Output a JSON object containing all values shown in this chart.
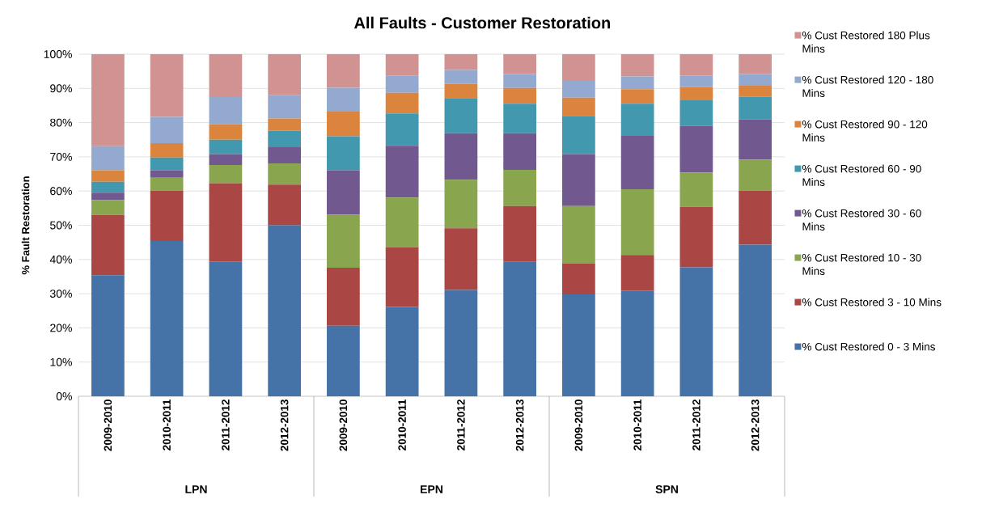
{
  "chart_data": {
    "type": "bar",
    "stacked": true,
    "title": "All Faults - Customer Restoration",
    "ylabel": "% Fault Restoration",
    "categories": [
      "2009-2010",
      "2010-2011",
      "2011-2012",
      "2012-2013",
      "2009-2010",
      "2010-2011",
      "2011-2012",
      "2012-2013",
      "2009-2010",
      "2010-2011",
      "2011-2012",
      "2012-2013"
    ],
    "annotations": [
      "LPN",
      "EPN",
      "SPN"
    ],
    "series": [
      {
        "name": "% Cust Restored 0 - 3 Mins",
        "color": "#4572a7",
        "values": [
          35.4,
          45.4,
          39.4,
          50.0,
          20.6,
          26.1,
          31.1,
          39.3,
          29.8,
          30.9,
          37.7,
          44.3
        ]
      },
      {
        "name": "% Cust Restored 3 - 10 Mins",
        "color": "#aa4643",
        "values": [
          17.6,
          14.7,
          22.9,
          11.9,
          17.0,
          17.5,
          18.0,
          16.3,
          9.1,
          10.4,
          17.7,
          15.8
        ]
      },
      {
        "name": "% Cust Restored 10 - 30 Mins",
        "color": "#89a54e",
        "values": [
          4.3,
          3.8,
          5.3,
          6.2,
          15.5,
          14.5,
          14.2,
          10.6,
          16.7,
          19.2,
          10.0,
          9.1
        ]
      },
      {
        "name": "% Cust Restored 30 - 60 Mins",
        "color": "#71588f",
        "values": [
          2.2,
          2.2,
          3.2,
          4.7,
          13.0,
          15.1,
          13.6,
          10.7,
          15.2,
          15.6,
          13.7,
          11.7
        ]
      },
      {
        "name": "% Cust Restored 60 - 90 Mins",
        "color": "#4198af",
        "values": [
          3.2,
          3.7,
          4.2,
          4.8,
          9.9,
          9.5,
          10.3,
          8.6,
          11.2,
          9.4,
          7.4,
          6.6
        ]
      },
      {
        "name": "% Cust Restored 90 - 120 Mins",
        "color": "#db843d",
        "values": [
          3.4,
          4.2,
          4.5,
          3.6,
          7.2,
          6.0,
          4.2,
          4.6,
          5.3,
          4.3,
          3.9,
          3.3
        ]
      },
      {
        "name": "% Cust Restored 120 - 180 Mins",
        "color": "#93a9cf",
        "values": [
          7.0,
          7.7,
          8.2,
          6.9,
          7.0,
          5.1,
          4.0,
          4.1,
          4.9,
          3.7,
          3.4,
          3.4
        ]
      },
      {
        "name": "% Cust Restored 180 Plus Mins",
        "color": "#d19392",
        "values": [
          26.9,
          18.3,
          12.3,
          11.9,
          9.8,
          6.2,
          4.6,
          5.8,
          7.8,
          6.5,
          6.2,
          5.8
        ]
      }
    ],
    "ylim": [
      0,
      100
    ],
    "yticks": [
      {
        "value": 0,
        "label": "0%"
      },
      {
        "value": 10,
        "label": "10%"
      },
      {
        "value": 20,
        "label": "20%"
      },
      {
        "value": 30,
        "label": "30%"
      },
      {
        "value": 40,
        "label": "40%"
      },
      {
        "value": 50,
        "label": "50%"
      },
      {
        "value": 60,
        "label": "60%"
      },
      {
        "value": 70,
        "label": "70%"
      },
      {
        "value": 80,
        "label": "80%"
      },
      {
        "value": 90,
        "label": "90%"
      },
      {
        "value": 100,
        "label": "100%"
      }
    ],
    "grid": "y",
    "legend": "right"
  }
}
